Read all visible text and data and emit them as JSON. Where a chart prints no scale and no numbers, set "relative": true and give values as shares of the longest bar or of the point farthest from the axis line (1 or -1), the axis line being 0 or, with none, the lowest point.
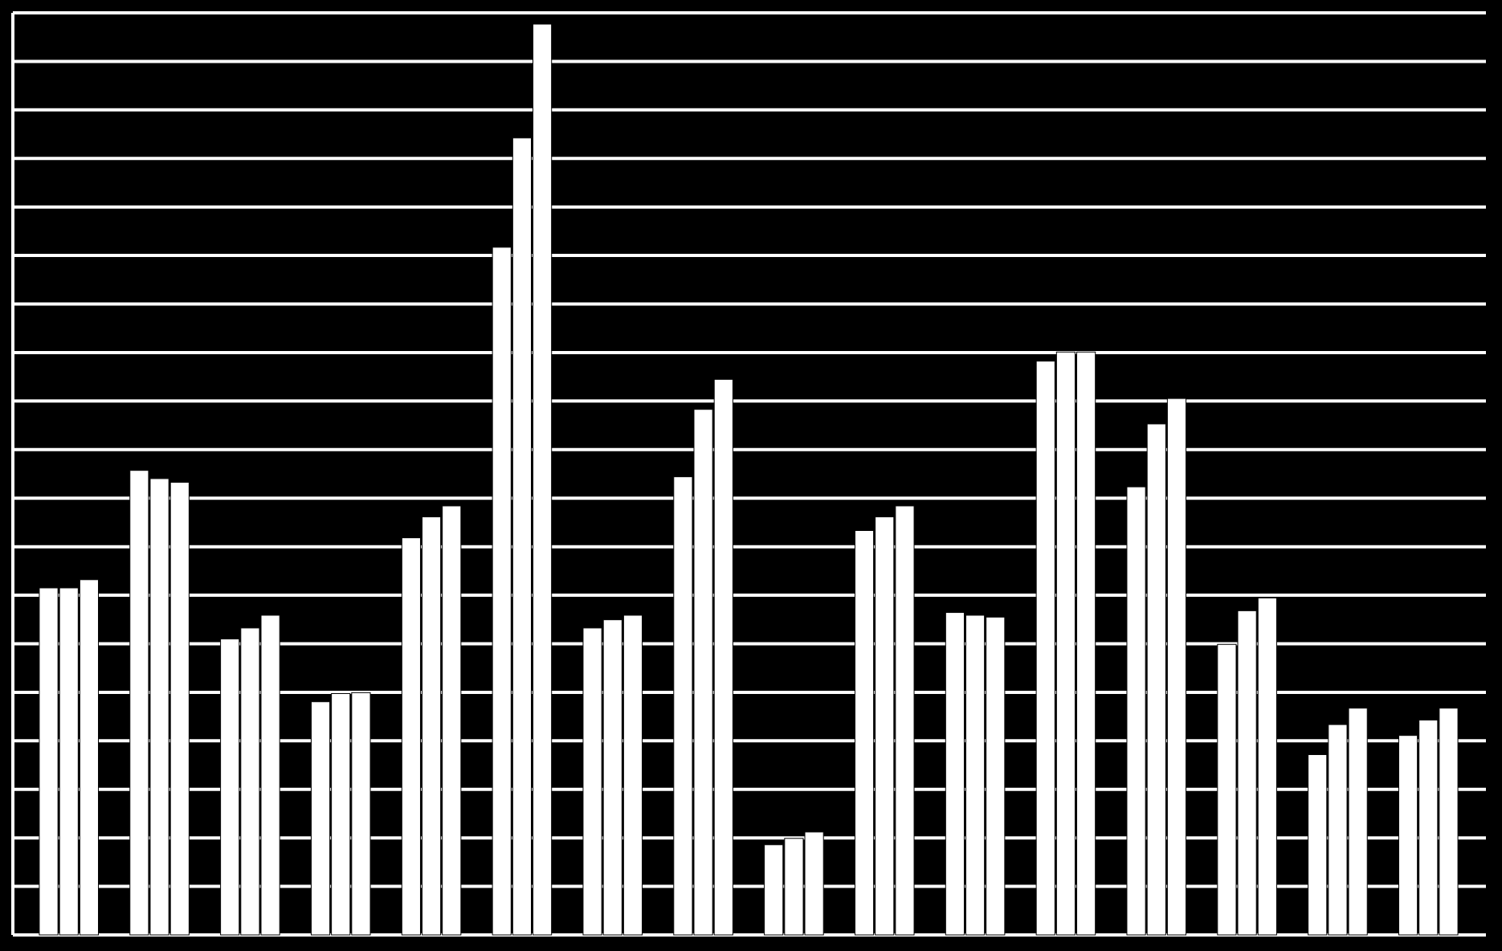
{
  "chart_data": {
    "type": "bar",
    "relative": true,
    "grid": true,
    "categories": [
      null,
      null,
      null,
      null,
      null,
      null,
      null,
      null,
      null,
      null,
      null,
      null,
      null,
      null,
      null,
      null
    ],
    "series": [
      {
        "color": "#ffffff",
        "values": [
          0.381,
          0.51,
          0.325,
          0.256,
          0.436,
          0.755,
          0.337,
          0.503,
          0.099,
          0.444,
          0.354,
          0.63,
          0.492,
          0.319,
          0.198,
          0.219
        ]
      },
      {
        "color": "#ffffff",
        "values": [
          0.381,
          0.501,
          0.337,
          0.265,
          0.459,
          0.875,
          0.346,
          0.577,
          0.106,
          0.459,
          0.351,
          0.64,
          0.561,
          0.356,
          0.231,
          0.236
        ]
      },
      {
        "color": "#ffffff",
        "values": [
          0.39,
          0.497,
          0.351,
          0.266,
          0.471,
          1,
          0.351,
          0.61,
          0.113,
          0.471,
          0.349,
          0.64,
          0.589,
          0.37,
          0.249,
          0.249
        ]
      }
    ]
  }
}
